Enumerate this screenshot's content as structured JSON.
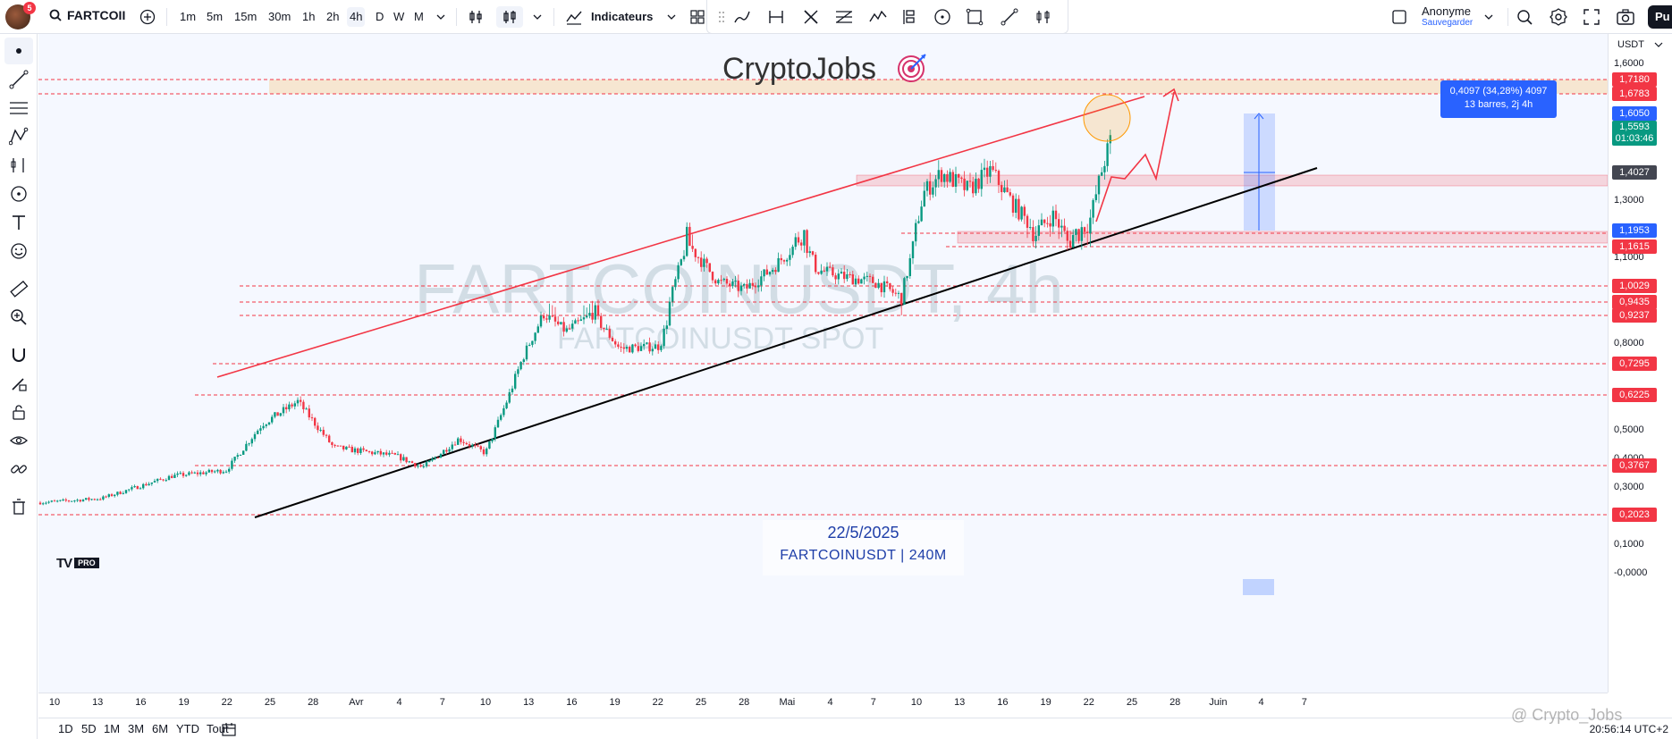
{
  "header": {
    "avatar_badge": "5",
    "symbol": "FARTCOII",
    "intervals": [
      "1m",
      "5m",
      "15m",
      "30m",
      "1h",
      "2h",
      "4h",
      "D",
      "W",
      "M"
    ],
    "active_interval": "4h",
    "indicators_label": "Indicateurs",
    "user_name": "Anonyme",
    "user_sub": "Sauvegarder",
    "publish_label": "Pu"
  },
  "chart": {
    "brand_title": "CryptoJobs",
    "watermark_main": "FARTCOINUSDT, 4h",
    "watermark_sub": "FARTCOINUSDT SPOT",
    "date_text": "22/5/2025",
    "pair_text": "FARTCOINUSDT | 240M",
    "measure_line1": "0,4097 (34,28%) 4097",
    "measure_line2": "13 barres, 2j 4h",
    "tv_logo": "TV",
    "tv_pro": "PRO",
    "copyright": "@ Crypto_Jobs"
  },
  "price_axis": {
    "currency": "USDT",
    "scale_labels": [
      "1,6000",
      "1,3000",
      "1,1000",
      "0,8000",
      "0,5000",
      "0,4000",
      "0,3000",
      "0,1000",
      "-0,0000"
    ],
    "tags": [
      {
        "value": "1,7180",
        "color": "red"
      },
      {
        "value": "1,6783",
        "color": "red"
      },
      {
        "value": "1,6050",
        "color": "blue"
      },
      {
        "value": "1,5593",
        "color": "green",
        "sub": "01:03:46"
      },
      {
        "value": "1,4027",
        "color": "gray"
      },
      {
        "value": "1,1953",
        "color": "blue"
      },
      {
        "value": "1,1615",
        "color": "red"
      },
      {
        "value": "1,0029",
        "color": "red"
      },
      {
        "value": "0,9435",
        "color": "red"
      },
      {
        "value": "0,9237",
        "color": "red"
      },
      {
        "value": "0,7295",
        "color": "red"
      },
      {
        "value": "0,6225",
        "color": "red"
      },
      {
        "value": "0,3767",
        "color": "red"
      },
      {
        "value": "0,2023",
        "color": "red"
      }
    ]
  },
  "time_axis": {
    "labels": [
      "10",
      "13",
      "16",
      "19",
      "22",
      "25",
      "28",
      "Avr",
      "4",
      "7",
      "10",
      "13",
      "16",
      "19",
      "22",
      "25",
      "28",
      "Mai",
      "4",
      "7",
      "10",
      "13",
      "16",
      "19",
      "22",
      "25",
      "28",
      "Juin",
      "4",
      "7"
    ]
  },
  "bottom": {
    "ranges": [
      "1D",
      "5D",
      "1M",
      "3M",
      "6M",
      "YTD",
      "Tout"
    ],
    "time": "20:56:14 UTC+2"
  },
  "chart_data": {
    "type": "candlestick",
    "symbol": "FARTCOINUSDT",
    "interval": "4h",
    "x_range": [
      "10 Mar",
      "7 Juin"
    ],
    "ylim": [
      0,
      1.8
    ],
    "last_price": 1.5593,
    "horizontal_levels": [
      1.718,
      1.6783,
      1.1615,
      1.0029,
      0.9435,
      0.9237,
      0.7295,
      0.6225,
      0.3767,
      0.2023
    ],
    "zones": [
      {
        "range": [
          1.36,
          1.4
        ],
        "color": "#f23645"
      },
      {
        "range": [
          1.16,
          1.19
        ],
        "color": "#f23645"
      },
      {
        "range": [
          1.6783,
          1.718
        ],
        "color": "#ff9800"
      }
    ],
    "measure": {
      "from": 1.1953,
      "to": 1.605,
      "change": "0,4097 (34,28%) 4097",
      "bars": "13 barres, 2j 4h"
    }
  }
}
